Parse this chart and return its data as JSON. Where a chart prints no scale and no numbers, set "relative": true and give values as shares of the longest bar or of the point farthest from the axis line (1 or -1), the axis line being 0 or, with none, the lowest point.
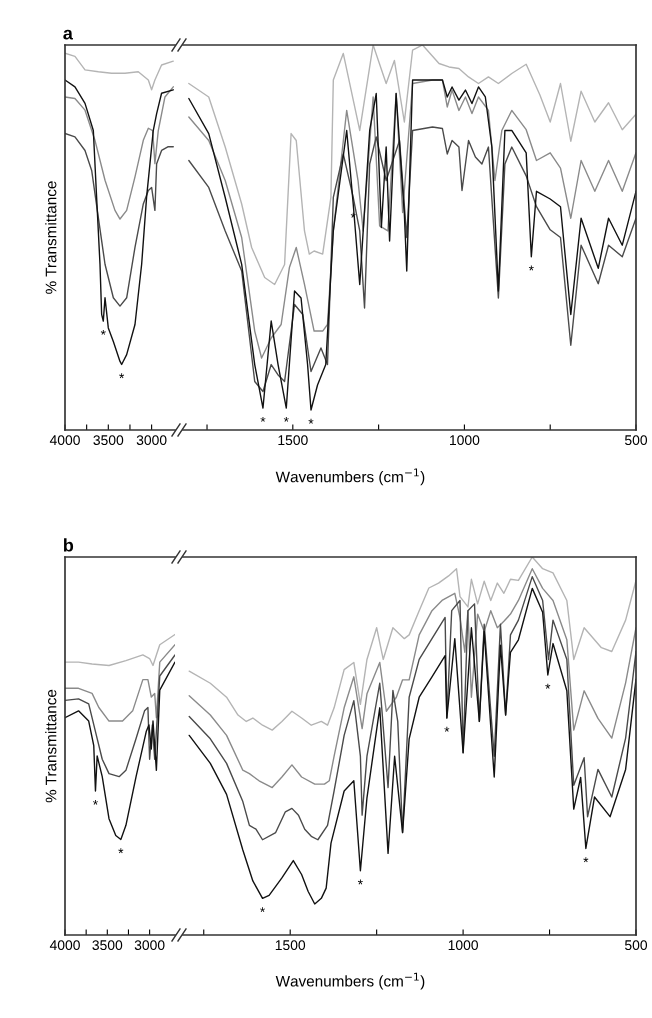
{
  "chart_data": [
    {
      "type": "line",
      "title": "a",
      "ylabel": "% Transmittance",
      "relative": true,
      "tick_labels": "x",
      "xlim": [
        4000,
        2730
      ],
      "xticks": [
        4000,
        {
          "value": 3750,
          "label": null
        },
        3500,
        {
          "value": 3250,
          "label": null
        },
        3000
      ],
      "series": [
        {
          "color": "#b4b4b4",
          "x": [
            4000,
            3885,
            3769,
            3615,
            3462,
            3308,
            3154,
            3038,
            3000,
            2962,
            2885,
            2750
          ],
          "values": [
            1.0,
            0.992,
            0.956,
            0.951,
            0.947,
            0.947,
            0.951,
            0.929,
            0.903,
            0.929,
            0.969,
            0.979
          ]
        },
        {
          "color": "#8a8a8a",
          "x": [
            4000,
            3885,
            3769,
            3654,
            3538,
            3423,
            3365,
            3288,
            3192,
            3096,
            3038,
            2988,
            2962,
            2923,
            2846,
            2750
          ],
          "values": [
            0.884,
            0.88,
            0.849,
            0.769,
            0.663,
            0.583,
            0.56,
            0.583,
            0.672,
            0.769,
            0.801,
            0.795,
            0.707,
            0.795,
            0.884,
            0.911
          ]
        },
        {
          "color": "#4a4a4a",
          "x": [
            4000,
            3885,
            3769,
            3692,
            3615,
            3538,
            3442,
            3365,
            3288,
            3192,
            3096,
            3038,
            3000,
            2962,
            2942,
            2885,
            2808,
            2750
          ],
          "values": [
            0.787,
            0.778,
            0.742,
            0.689,
            0.564,
            0.44,
            0.351,
            0.329,
            0.351,
            0.485,
            0.6,
            0.636,
            0.644,
            0.583,
            0.707,
            0.742,
            0.752,
            0.752
          ]
        },
        {
          "color": "#111111",
          "x": [
            4000,
            3885,
            3769,
            3673,
            3635,
            3596,
            3577,
            3558,
            3538,
            3500,
            3442,
            3365,
            3346,
            3288,
            3192,
            3115,
            3058,
            3019,
            2981,
            2942,
            2885,
            2750
          ],
          "values": [
            0.929,
            0.911,
            0.867,
            0.795,
            0.618,
            0.44,
            0.307,
            0.289,
            0.351,
            0.271,
            0.235,
            0.182,
            0.174,
            0.2,
            0.28,
            0.44,
            0.618,
            0.707,
            0.795,
            0.84,
            0.894,
            0.903
          ]
        }
      ],
      "annotations": [
        {
          "text": "*",
          "x": 3558,
          "y": 0.289
        },
        {
          "text": "*",
          "x": 3346,
          "y": 0.174
        }
      ]
    },
    {
      "type": "line",
      "xlabel": "Wavenumbers (cm$^{−1}$)",
      "relative": true,
      "tick_labels": "x",
      "xlim": [
        1820,
        500
      ],
      "xticks": [
        {
          "value": 1750,
          "label": null
        },
        1500,
        {
          "value": 1250,
          "label": null
        },
        1000,
        {
          "value": 750,
          "label": null
        },
        500
      ],
      "series": [
        {
          "color": "#b4b4b4",
          "x": [
            1803,
            1745,
            1697,
            1649,
            1620,
            1582,
            1553,
            1524,
            1505,
            1490,
            1466,
            1452,
            1438,
            1413,
            1389,
            1382,
            1353,
            1305,
            1266,
            1228,
            1204,
            1175,
            1151,
            1122,
            1074,
            1045,
            1016,
            988,
            959,
            930,
            901,
            862,
            820,
            780,
            750,
            720,
            690,
            660,
            620,
            580,
            540,
            500
          ],
          "values": [
            0.9,
            0.865,
            0.735,
            0.587,
            0.474,
            0.396,
            0.378,
            0.43,
            0.77,
            0.752,
            0.517,
            0.457,
            0.465,
            0.457,
            0.604,
            0.909,
            0.978,
            0.778,
            1.0,
            0.9,
            0.96,
            0.8,
            0.987,
            1.0,
            0.952,
            0.943,
            0.939,
            0.917,
            0.9,
            0.917,
            0.9,
            0.926,
            0.95,
            0.87,
            0.8,
            0.9,
            0.75,
            0.88,
            0.8,
            0.85,
            0.78,
            0.82
          ]
        },
        {
          "color": "#8a8a8a",
          "x": [
            1803,
            1745,
            1697,
            1649,
            1611,
            1591,
            1563,
            1534,
            1510,
            1490,
            1466,
            1438,
            1413,
            1399,
            1382,
            1343,
            1310,
            1295,
            1266,
            1247,
            1223,
            1199,
            1180,
            1151,
            1093,
            1064,
            1050,
            1036,
            1016,
            997,
            978,
            959,
            930,
            911,
            891,
            862,
            820,
            790,
            750,
            720,
            690,
            660,
            620,
            580,
            540,
            500
          ],
          "values": [
            0.813,
            0.752,
            0.648,
            0.5,
            0.257,
            0.187,
            0.239,
            0.274,
            0.422,
            0.474,
            0.378,
            0.257,
            0.257,
            0.274,
            0.517,
            0.83,
            0.648,
            0.517,
            0.865,
            0.53,
            0.517,
            0.874,
            0.565,
            0.9,
            0.909,
            0.909,
            0.839,
            0.883,
            0.83,
            0.865,
            0.822,
            0.865,
            0.83,
            0.648,
            0.778,
            0.83,
            0.78,
            0.7,
            0.72,
            0.68,
            0.55,
            0.7,
            0.62,
            0.7,
            0.62,
            0.72
          ]
        },
        {
          "color": "#4a4a4a",
          "x": [
            1803,
            1745,
            1697,
            1649,
            1611,
            1587,
            1563,
            1543,
            1524,
            1495,
            1471,
            1447,
            1418,
            1399,
            1382,
            1353,
            1324,
            1305,
            1291,
            1276,
            1257,
            1228,
            1189,
            1168,
            1151,
            1093,
            1064,
            1050,
            1036,
            1016,
            1007,
            988,
            968,
            949,
            930,
            901,
            882,
            862,
            820,
            790,
            750,
            720,
            690,
            660,
            610,
            580,
            540,
            500
          ],
          "values": [
            0.7,
            0.63,
            0.517,
            0.413,
            0.126,
            0.1,
            0.17,
            0.143,
            0.126,
            0.326,
            0.3,
            0.152,
            0.213,
            0.17,
            0.604,
            0.717,
            0.604,
            0.517,
            0.317,
            0.691,
            0.761,
            0.648,
            0.752,
            0.5,
            0.778,
            0.787,
            0.783,
            0.717,
            0.752,
            0.735,
            0.622,
            0.752,
            0.709,
            0.691,
            0.735,
            0.343,
            0.691,
            0.735,
            0.66,
            0.58,
            0.52,
            0.5,
            0.22,
            0.48,
            0.38,
            0.48,
            0.45,
            0.55
          ]
        },
        {
          "color": "#111111",
          "x": [
            1803,
            1745,
            1697,
            1649,
            1611,
            1587,
            1563,
            1543,
            1519,
            1495,
            1476,
            1457,
            1447,
            1428,
            1404,
            1382,
            1343,
            1324,
            1305,
            1276,
            1257,
            1242,
            1228,
            1218,
            1199,
            1175,
            1168,
            1151,
            1093,
            1064,
            1050,
            1036,
            1016,
            997,
            978,
            959,
            939,
            920,
            901,
            882,
            862,
            820,
            805,
            790,
            750,
            720,
            690,
            660,
            610,
            580,
            540,
            500
          ],
          "values": [
            0.861,
            0.77,
            0.604,
            0.43,
            0.17,
            0.057,
            0.283,
            0.17,
            0.057,
            0.361,
            0.343,
            0.17,
            0.052,
            0.117,
            0.17,
            0.517,
            0.778,
            0.587,
            0.378,
            0.778,
            0.874,
            0.526,
            0.735,
            0.491,
            0.874,
            0.561,
            0.413,
            0.909,
            0.909,
            0.909,
            0.865,
            0.891,
            0.857,
            0.883,
            0.848,
            0.891,
            0.865,
            0.735,
            0.361,
            0.778,
            0.778,
            0.72,
            0.45,
            0.62,
            0.6,
            0.58,
            0.3,
            0.55,
            0.42,
            0.55,
            0.48,
            0.62
          ]
        }
      ],
      "annotations": [
        {
          "text": "*",
          "x": 1587,
          "y": 0.057
        },
        {
          "text": "*",
          "x": 1519,
          "y": 0.057
        },
        {
          "text": "*",
          "x": 1447,
          "y": 0.052
        },
        {
          "text": "*",
          "x": 1324,
          "y": 0.587
        },
        {
          "text": "*",
          "x": 805,
          "y": 0.45
        }
      ]
    },
    {
      "type": "line",
      "title": "b",
      "ylabel": "% Transmittance",
      "relative": true,
      "tick_labels": "x",
      "xlim": [
        4000,
        2700
      ],
      "xticks": [
        4000,
        {
          "value": 3750,
          "label": null
        },
        3500,
        {
          "value": 3250,
          "label": null
        },
        3000
      ],
      "series": [
        {
          "color": "#b4b4b4",
          "x": [
            4000,
            3840,
            3680,
            3480,
            3280,
            3080,
            3000,
            2960,
            2920,
            2880,
            2700
          ],
          "values": [
            0.908,
            0.908,
            0.902,
            0.897,
            0.913,
            0.932,
            0.92,
            0.897,
            0.932,
            0.966,
            1.0
          ]
        },
        {
          "color": "#8a8a8a",
          "x": [
            4000,
            3840,
            3680,
            3600,
            3480,
            3320,
            3200,
            3080,
            3020,
            2980,
            2940,
            2920,
            2880,
            2700
          ],
          "values": [
            0.821,
            0.821,
            0.804,
            0.757,
            0.712,
            0.712,
            0.746,
            0.85,
            0.85,
            0.792,
            0.804,
            0.723,
            0.908,
            0.966
          ]
        },
        {
          "color": "#4a4a4a",
          "x": [
            4000,
            3840,
            3720,
            3640,
            3560,
            3480,
            3360,
            3280,
            3160,
            3060,
            3020,
            3000,
            2968,
            2940,
            2880,
            2700
          ],
          "values": [
            0.781,
            0.786,
            0.769,
            0.677,
            0.585,
            0.537,
            0.527,
            0.548,
            0.654,
            0.746,
            0.757,
            0.585,
            0.699,
            0.585,
            0.862,
            0.932
          ]
        },
        {
          "color": "#111111",
          "x": [
            4000,
            3840,
            3720,
            3660,
            3640,
            3620,
            3560,
            3480,
            3400,
            3340,
            3280,
            3160,
            3040,
            3008,
            2980,
            2960,
            2920,
            2880,
            2700
          ],
          "values": [
            0.723,
            0.746,
            0.712,
            0.63,
            0.479,
            0.596,
            0.527,
            0.387,
            0.331,
            0.318,
            0.365,
            0.527,
            0.677,
            0.699,
            0.619,
            0.712,
            0.548,
            0.815,
            0.908
          ]
        }
      ],
      "annotations": [
        {
          "text": "*",
          "x": 3640,
          "y": 0.479
        },
        {
          "text": "*",
          "x": 3340,
          "y": 0.318
        }
      ]
    },
    {
      "type": "line",
      "xlabel": "Wavenumbers (cm$^{−1}$)",
      "relative": true,
      "tick_labels": "x",
      "xlim": [
        1810,
        500
      ],
      "xticks": [
        {
          "value": 1750,
          "label": null
        },
        1500,
        {
          "value": 1250,
          "label": null
        },
        1000,
        {
          "value": 750,
          "label": null
        },
        500
      ],
      "series": [
        {
          "color": "#b4b4b4",
          "x": [
            1792,
            1731,
            1684,
            1651,
            1627,
            1608,
            1580,
            1552,
            1524,
            1495,
            1467,
            1439,
            1410,
            1392,
            1373,
            1344,
            1316,
            1297,
            1278,
            1250,
            1231,
            1203,
            1170,
            1156,
            1127,
            1099,
            1071,
            1042,
            1019,
            1009,
            986,
            976,
            958,
            939,
            920,
            901,
            882,
            863,
            840,
            800,
            770,
            740,
            700,
            680,
            650,
            600,
            570,
            530,
            500
          ],
          "values": [
            0.698,
            0.666,
            0.629,
            0.582,
            0.565,
            0.574,
            0.555,
            0.542,
            0.565,
            0.592,
            0.574,
            0.555,
            0.565,
            0.555,
            0.601,
            0.702,
            0.721,
            0.61,
            0.729,
            0.813,
            0.729,
            0.813,
            0.784,
            0.794,
            0.858,
            0.918,
            0.931,
            0.95,
            0.969,
            0.895,
            0.868,
            0.941,
            0.876,
            0.936,
            0.885,
            0.931,
            0.904,
            0.941,
            0.938,
            1.0,
            0.969,
            0.958,
            0.885,
            0.729,
            0.813,
            0.76,
            0.75,
            0.833,
            0.938
          ]
        },
        {
          "color": "#8a8a8a",
          "x": [
            1792,
            1731,
            1684,
            1637,
            1618,
            1590,
            1552,
            1524,
            1495,
            1467,
            1429,
            1401,
            1387,
            1373,
            1344,
            1316,
            1292,
            1278,
            1241,
            1222,
            1193,
            1175,
            1156,
            1127,
            1090,
            1061,
            1024,
            1009,
            995,
            986,
            976,
            958,
            939,
            920,
            901,
            882,
            863,
            840,
            800,
            770,
            740,
            700,
            680,
            650,
            610,
            570,
            530,
            500
          ],
          "values": [
            0.633,
            0.582,
            0.528,
            0.436,
            0.427,
            0.408,
            0.39,
            0.418,
            0.45,
            0.418,
            0.399,
            0.399,
            0.408,
            0.473,
            0.601,
            0.683,
            0.546,
            0.638,
            0.721,
            0.592,
            0.629,
            0.675,
            0.675,
            0.794,
            0.858,
            0.885,
            0.904,
            0.84,
            0.748,
            0.858,
            0.629,
            0.849,
            0.803,
            0.858,
            0.813,
            0.83,
            0.849,
            0.885,
            0.969,
            0.917,
            0.885,
            0.781,
            0.542,
            0.646,
            0.573,
            0.521,
            0.667,
            0.813
          ]
        },
        {
          "color": "#4a4a4a",
          "x": [
            1792,
            1731,
            1684,
            1637,
            1618,
            1599,
            1580,
            1542,
            1514,
            1495,
            1476,
            1458,
            1439,
            1420,
            1392,
            1373,
            1344,
            1316,
            1297,
            1292,
            1278,
            1241,
            1217,
            1203,
            1189,
            1175,
            1156,
            1127,
            1090,
            1052,
            1047,
            1033,
            1009,
            1000,
            986,
            967,
            953,
            939,
            910,
            892,
            877,
            863,
            840,
            800,
            770,
            753,
            740,
            700,
            680,
            650,
            640,
            610,
            570,
            530,
            500
          ],
          "values": [
            0.578,
            0.519,
            0.454,
            0.353,
            0.29,
            0.28,
            0.252,
            0.271,
            0.326,
            0.335,
            0.317,
            0.28,
            0.261,
            0.252,
            0.29,
            0.381,
            0.528,
            0.62,
            0.473,
            0.317,
            0.473,
            0.666,
            0.39,
            0.647,
            0.565,
            0.271,
            0.629,
            0.729,
            0.784,
            0.84,
            0.574,
            0.858,
            0.885,
            0.482,
            0.858,
            0.876,
            0.565,
            0.822,
            0.473,
            0.822,
            0.582,
            0.794,
            0.833,
            0.948,
            0.885,
            0.729,
            0.833,
            0.729,
            0.396,
            0.469,
            0.313,
            0.438,
            0.365,
            0.521,
            0.75
          ]
        },
        {
          "color": "#111111",
          "x": [
            1792,
            1731,
            1684,
            1637,
            1608,
            1580,
            1561,
            1524,
            1491,
            1467,
            1448,
            1429,
            1410,
            1396,
            1382,
            1344,
            1316,
            1297,
            1278,
            1241,
            1217,
            1198,
            1175,
            1156,
            1127,
            1090,
            1052,
            1047,
            1024,
            1000,
            976,
            953,
            939,
            910,
            892,
            877,
            863,
            840,
            800,
            770,
            755,
            740,
            700,
            680,
            660,
            645,
            620,
            575,
            530,
            500
          ],
          "values": [
            0.528,
            0.454,
            0.372,
            0.225,
            0.143,
            0.097,
            0.105,
            0.151,
            0.197,
            0.16,
            0.115,
            0.082,
            0.097,
            0.124,
            0.243,
            0.381,
            0.408,
            0.17,
            0.363,
            0.601,
            0.216,
            0.473,
            0.271,
            0.519,
            0.629,
            0.683,
            0.739,
            0.574,
            0.784,
            0.482,
            0.813,
            0.565,
            0.803,
            0.418,
            0.767,
            0.582,
            0.748,
            0.781,
            0.917,
            0.854,
            0.688,
            0.771,
            0.646,
            0.333,
            0.417,
            0.229,
            0.365,
            0.313,
            0.438,
            0.677
          ]
        }
      ],
      "annotations": [
        {
          "text": "*",
          "x": 1580,
          "y": 0.097
        },
        {
          "text": "*",
          "x": 1297,
          "y": 0.17
        },
        {
          "text": "*",
          "x": 1047,
          "y": 0.574
        },
        {
          "text": "*",
          "x": 755,
          "y": 0.688
        },
        {
          "text": "*",
          "x": 645,
          "y": 0.229
        }
      ]
    }
  ]
}
